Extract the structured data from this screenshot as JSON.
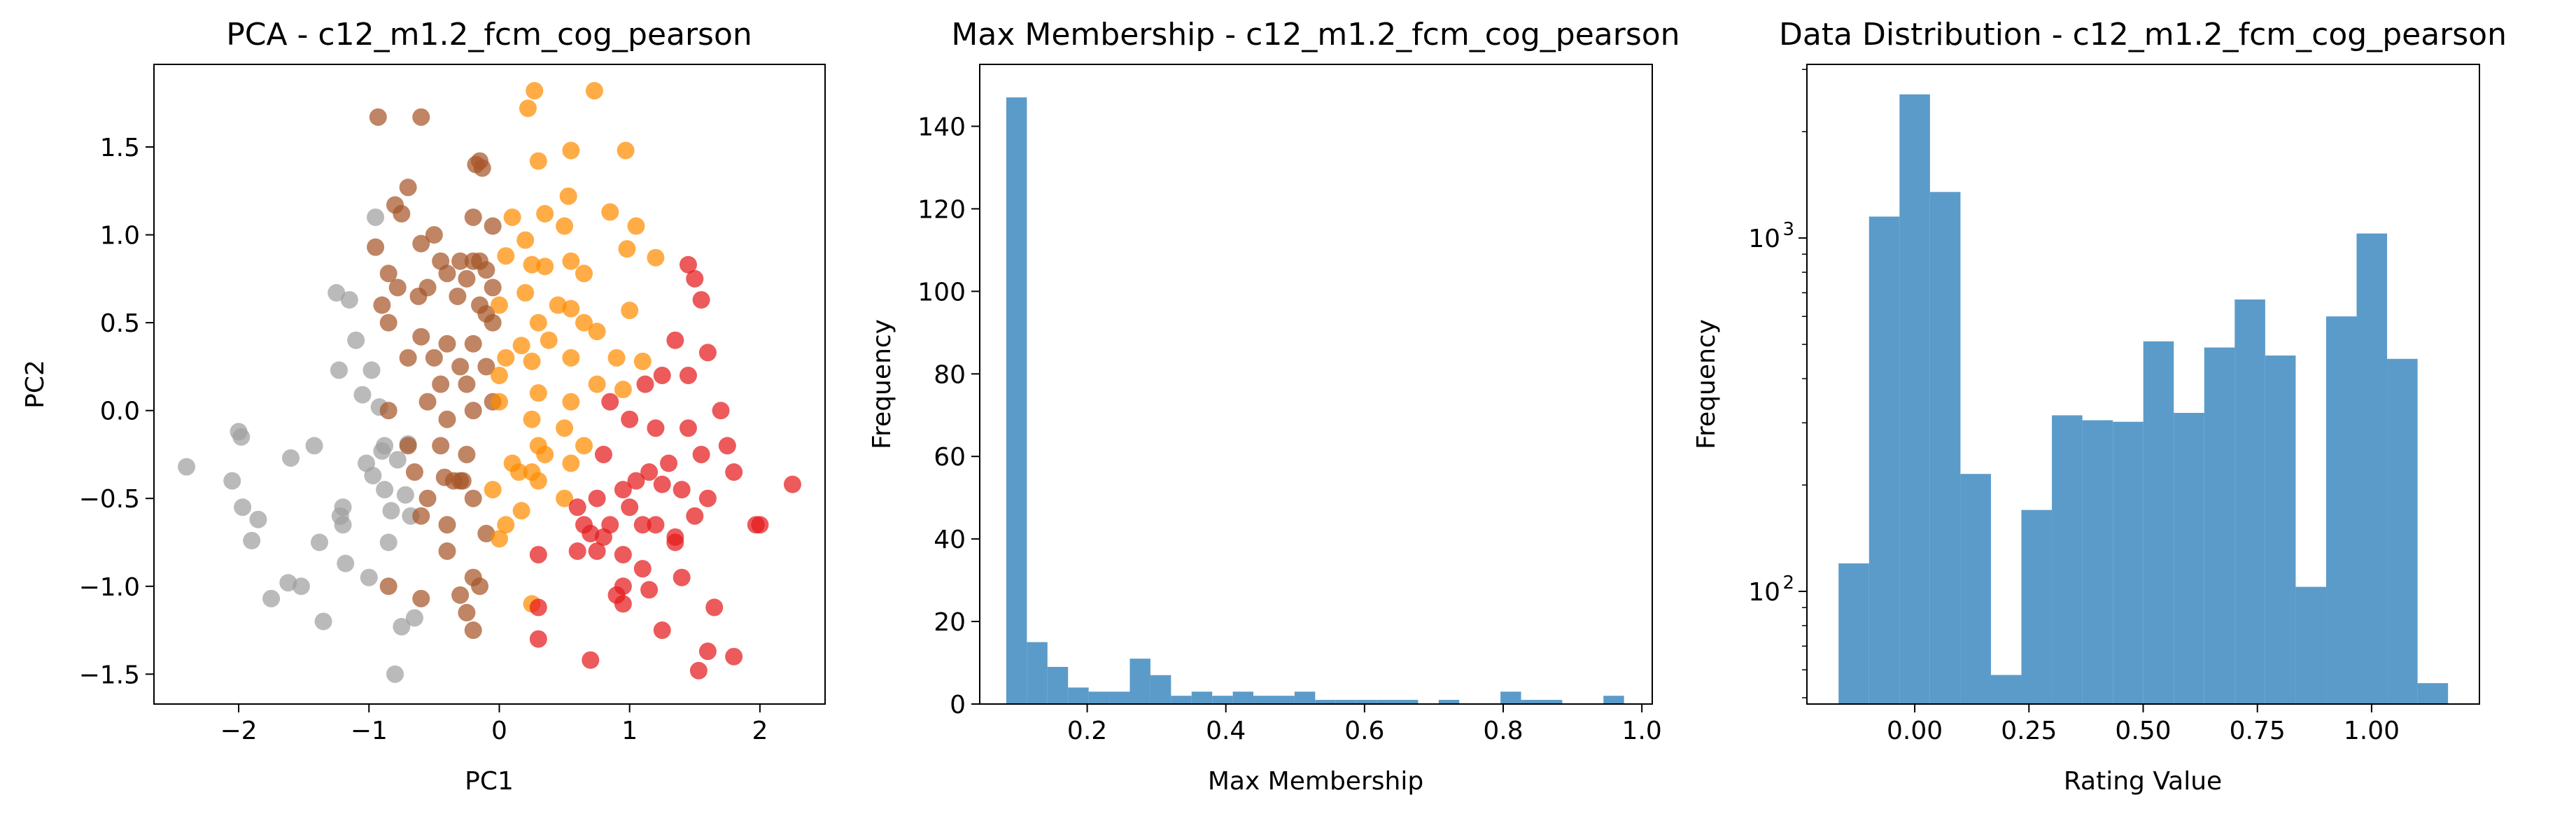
{
  "colors": {
    "cluster_gray": "#a0a0a0",
    "cluster_brown": "#a65628",
    "cluster_orange": "#ff8c00",
    "cluster_red": "#e41a1c",
    "histogram": "#5b9bc9"
  },
  "chart_data": [
    {
      "type": "scatter",
      "title": "PCA - c12_m1.2_fcm_cog_pearson",
      "xlabel": "PC1",
      "ylabel": "PC2",
      "xlim": [
        -2.65,
        2.5
      ],
      "ylim": [
        -1.67,
        1.97
      ],
      "xticks": [
        -2,
        -1,
        0,
        1,
        2
      ],
      "xtick_labels": [
        "−2",
        "−1",
        "0",
        "1",
        "2"
      ],
      "yticks": [
        -1.5,
        -1.0,
        -0.5,
        0.0,
        0.5,
        1.0,
        1.5
      ],
      "ytick_labels": [
        "−1.5",
        "−1.0",
        "−0.5",
        "0.0",
        "0.5",
        "1.0",
        "1.5"
      ],
      "grid": false,
      "series": [
        {
          "color_key": "cluster_gray",
          "points": [
            [
              -2.4,
              -0.32
            ],
            [
              -2.05,
              -0.4
            ],
            [
              -2.0,
              -0.12
            ],
            [
              -1.98,
              -0.15
            ],
            [
              -1.97,
              -0.55
            ],
            [
              -1.9,
              -0.74
            ],
            [
              -1.85,
              -0.62
            ],
            [
              -1.75,
              -1.07
            ],
            [
              -1.62,
              -0.98
            ],
            [
              -1.6,
              -0.27
            ],
            [
              -1.52,
              -1.0
            ],
            [
              -1.42,
              -0.2
            ],
            [
              -1.38,
              -0.75
            ],
            [
              -1.35,
              -1.2
            ],
            [
              -1.25,
              0.67
            ],
            [
              -1.23,
              0.23
            ],
            [
              -1.2,
              -0.65
            ],
            [
              -1.18,
              -0.87
            ],
            [
              -1.15,
              0.63
            ],
            [
              -1.1,
              0.4
            ],
            [
              -1.05,
              0.09
            ],
            [
              -1.02,
              -0.3
            ],
            [
              -1.0,
              -0.95
            ],
            [
              -0.98,
              0.23
            ],
            [
              -0.97,
              -0.37
            ],
            [
              -0.95,
              1.1
            ],
            [
              -0.92,
              0.02
            ],
            [
              -0.9,
              -0.23
            ],
            [
              -0.88,
              -0.45
            ],
            [
              -0.85,
              -0.75
            ],
            [
              -0.83,
              -0.57
            ],
            [
              -0.8,
              -1.5
            ],
            [
              -0.78,
              -0.28
            ],
            [
              -0.75,
              -1.23
            ],
            [
              -0.72,
              -0.48
            ],
            [
              -0.7,
              -0.19
            ],
            [
              -0.68,
              -0.6
            ],
            [
              -0.65,
              -1.18
            ],
            [
              -1.2,
              -0.55
            ],
            [
              -1.22,
              -0.6
            ],
            [
              -0.88,
              -0.2
            ]
          ]
        },
        {
          "color_key": "cluster_brown",
          "points": [
            [
              -0.93,
              1.67
            ],
            [
              -0.6,
              1.67
            ],
            [
              -0.15,
              1.42
            ],
            [
              -0.13,
              1.38
            ],
            [
              -0.18,
              1.4
            ],
            [
              -0.7,
              1.27
            ],
            [
              -0.05,
              1.05
            ],
            [
              -0.2,
              1.1
            ],
            [
              -0.8,
              1.17
            ],
            [
              -0.75,
              1.12
            ],
            [
              -0.95,
              0.93
            ],
            [
              -0.5,
              1.0
            ],
            [
              -0.85,
              0.78
            ],
            [
              -0.6,
              0.95
            ],
            [
              -0.45,
              0.85
            ],
            [
              -0.3,
              0.85
            ],
            [
              -0.2,
              0.85
            ],
            [
              -0.15,
              0.85
            ],
            [
              -0.1,
              0.8
            ],
            [
              -0.78,
              0.7
            ],
            [
              -0.4,
              0.78
            ],
            [
              -0.25,
              0.75
            ],
            [
              -0.55,
              0.7
            ],
            [
              -0.05,
              0.7
            ],
            [
              -0.9,
              0.6
            ],
            [
              -0.62,
              0.65
            ],
            [
              -0.32,
              0.65
            ],
            [
              -0.15,
              0.6
            ],
            [
              -0.1,
              0.55
            ],
            [
              -0.85,
              0.5
            ],
            [
              -0.6,
              0.42
            ],
            [
              -0.4,
              0.38
            ],
            [
              -0.2,
              0.38
            ],
            [
              -0.05,
              0.5
            ],
            [
              -0.7,
              0.3
            ],
            [
              -0.5,
              0.3
            ],
            [
              -0.3,
              0.25
            ],
            [
              -0.1,
              0.25
            ],
            [
              -0.45,
              0.15
            ],
            [
              -0.25,
              0.15
            ],
            [
              -0.85,
              0.0
            ],
            [
              -0.55,
              0.05
            ],
            [
              -0.4,
              -0.05
            ],
            [
              -0.2,
              0.0
            ],
            [
              -0.05,
              0.05
            ],
            [
              -0.7,
              -0.2
            ],
            [
              -0.45,
              -0.2
            ],
            [
              -0.25,
              -0.25
            ],
            [
              -0.65,
              -0.35
            ],
            [
              -0.42,
              -0.38
            ],
            [
              -0.35,
              -0.4
            ],
            [
              -0.3,
              -0.4
            ],
            [
              -0.55,
              -0.5
            ],
            [
              -0.2,
              -0.5
            ],
            [
              -0.6,
              -0.6
            ],
            [
              -0.4,
              -0.65
            ],
            [
              -0.1,
              -0.7
            ],
            [
              -0.4,
              -0.8
            ],
            [
              -0.85,
              -1.0
            ],
            [
              -0.2,
              -0.95
            ],
            [
              -0.15,
              -1.0
            ],
            [
              -0.6,
              -1.07
            ],
            [
              -0.3,
              -1.05
            ],
            [
              -0.25,
              -1.15
            ],
            [
              -0.2,
              -1.25
            ],
            [
              -0.28,
              -0.4
            ]
          ]
        },
        {
          "color_key": "cluster_orange",
          "points": [
            [
              0.27,
              1.82
            ],
            [
              0.73,
              1.82
            ],
            [
              0.22,
              1.72
            ],
            [
              0.55,
              1.48
            ],
            [
              0.3,
              1.42
            ],
            [
              0.97,
              1.48
            ],
            [
              0.53,
              1.22
            ],
            [
              0.1,
              1.1
            ],
            [
              0.35,
              1.12
            ],
            [
              0.5,
              1.05
            ],
            [
              0.85,
              1.13
            ],
            [
              1.05,
              1.05
            ],
            [
              0.2,
              0.97
            ],
            [
              0.25,
              0.83
            ],
            [
              0.35,
              0.82
            ],
            [
              0.55,
              0.85
            ],
            [
              0.98,
              0.92
            ],
            [
              0.05,
              0.88
            ],
            [
              0.65,
              0.78
            ],
            [
              1.2,
              0.87
            ],
            [
              0.2,
              0.67
            ],
            [
              0.45,
              0.6
            ],
            [
              0.55,
              0.58
            ],
            [
              0.0,
              0.6
            ],
            [
              0.3,
              0.5
            ],
            [
              0.65,
              0.5
            ],
            [
              1.0,
              0.57
            ],
            [
              0.17,
              0.37
            ],
            [
              0.38,
              0.4
            ],
            [
              0.75,
              0.45
            ],
            [
              0.05,
              0.3
            ],
            [
              0.25,
              0.28
            ],
            [
              0.55,
              0.3
            ],
            [
              0.9,
              0.3
            ],
            [
              1.1,
              0.28
            ],
            [
              0.0,
              0.2
            ],
            [
              0.3,
              0.1
            ],
            [
              0.55,
              0.05
            ],
            [
              0.75,
              0.15
            ],
            [
              0.95,
              0.12
            ],
            [
              0.0,
              0.05
            ],
            [
              0.25,
              -0.05
            ],
            [
              0.5,
              -0.1
            ],
            [
              0.3,
              -0.2
            ],
            [
              0.65,
              -0.2
            ],
            [
              0.1,
              -0.3
            ],
            [
              0.15,
              -0.35
            ],
            [
              0.35,
              -0.25
            ],
            [
              0.3,
              -0.4
            ],
            [
              0.55,
              -0.3
            ],
            [
              0.5,
              -0.5
            ],
            [
              -0.05,
              -0.45
            ],
            [
              0.17,
              -0.57
            ],
            [
              0.0,
              -0.73
            ],
            [
              0.25,
              -1.1
            ],
            [
              0.05,
              -0.65
            ],
            [
              0.25,
              -0.35
            ]
          ]
        },
        {
          "color_key": "cluster_red",
          "points": [
            [
              1.45,
              0.83
            ],
            [
              1.5,
              0.75
            ],
            [
              1.55,
              0.63
            ],
            [
              1.6,
              0.33
            ],
            [
              1.35,
              0.4
            ],
            [
              1.45,
              0.2
            ],
            [
              1.25,
              0.2
            ],
            [
              1.12,
              0.15
            ],
            [
              0.85,
              0.05
            ],
            [
              1.7,
              0.0
            ],
            [
              1.0,
              -0.05
            ],
            [
              1.2,
              -0.1
            ],
            [
              1.75,
              -0.2
            ],
            [
              1.45,
              -0.1
            ],
            [
              0.8,
              -0.25
            ],
            [
              1.3,
              -0.3
            ],
            [
              1.55,
              -0.25
            ],
            [
              1.15,
              -0.35
            ],
            [
              1.4,
              -0.45
            ],
            [
              1.8,
              -0.35
            ],
            [
              0.95,
              -0.45
            ],
            [
              1.05,
              -0.4
            ],
            [
              1.25,
              -0.42
            ],
            [
              1.6,
              -0.5
            ],
            [
              2.25,
              -0.42
            ],
            [
              0.6,
              -0.55
            ],
            [
              0.75,
              -0.5
            ],
            [
              1.0,
              -0.55
            ],
            [
              1.1,
              -0.65
            ],
            [
              0.65,
              -0.65
            ],
            [
              0.7,
              -0.7
            ],
            [
              0.85,
              -0.65
            ],
            [
              1.2,
              -0.65
            ],
            [
              1.35,
              -0.72
            ],
            [
              1.5,
              -0.6
            ],
            [
              1.97,
              -0.65
            ],
            [
              2.0,
              -0.65
            ],
            [
              0.75,
              -0.8
            ],
            [
              0.95,
              -0.82
            ],
            [
              1.1,
              -0.9
            ],
            [
              1.4,
              -0.95
            ],
            [
              0.3,
              -0.82
            ],
            [
              0.6,
              -0.8
            ],
            [
              0.95,
              -1.0
            ],
            [
              1.15,
              -1.02
            ],
            [
              0.9,
              -1.05
            ],
            [
              0.3,
              -1.12
            ],
            [
              0.95,
              -1.1
            ],
            [
              1.65,
              -1.12
            ],
            [
              0.3,
              -1.3
            ],
            [
              1.25,
              -1.25
            ],
            [
              1.6,
              -1.37
            ],
            [
              0.7,
              -1.42
            ],
            [
              1.53,
              -1.48
            ],
            [
              1.8,
              -1.4
            ],
            [
              1.35,
              -0.75
            ],
            [
              0.8,
              -0.72
            ]
          ]
        }
      ]
    },
    {
      "type": "bar",
      "title": "Max Membership - c12_m1.2_fcm_cog_pearson",
      "xlabel": "Max Membership",
      "ylabel": "Frequency",
      "xlim": [
        0.045,
        1.015
      ],
      "ylim": [
        0,
        155
      ],
      "xticks": [
        0.2,
        0.4,
        0.6,
        0.8,
        1.0
      ],
      "xtick_labels": [
        "0.2",
        "0.4",
        "0.6",
        "0.8",
        "1.0"
      ],
      "yticks": [
        0,
        20,
        40,
        60,
        80,
        100,
        120,
        140
      ],
      "ytick_labels": [
        "0",
        "20",
        "40",
        "60",
        "80",
        "100",
        "120",
        "140"
      ],
      "grid": false,
      "bin_start": 0.0833,
      "bin_width": 0.0297,
      "values": [
        147,
        15,
        9,
        4,
        3,
        3,
        11,
        7,
        2,
        3,
        2,
        3,
        2,
        2,
        3,
        1,
        1,
        1,
        1,
        1,
        0,
        1,
        0,
        0,
        3,
        1,
        1,
        0,
        0,
        2
      ]
    },
    {
      "type": "bar",
      "title": "Data Distribution - c12_m1.2_fcm_cog_pearson",
      "xlabel": "Rating Value",
      "ylabel": "Frequency",
      "yscale": "log",
      "xlim": [
        -0.236,
        1.236
      ],
      "ylim": [
        48,
        3100
      ],
      "xticks": [
        0.0,
        0.25,
        0.5,
        0.75,
        1.0
      ],
      "xtick_labels": [
        "0.00",
        "0.25",
        "0.50",
        "0.75",
        "1.00"
      ],
      "yticks_major": [
        100,
        1000
      ],
      "ytick_labels": [
        "10",
        "10"
      ],
      "ytick_exponents": [
        "2",
        "3"
      ],
      "grid": false,
      "bin_start": -0.1667,
      "bin_width": 0.0667,
      "values": [
        120,
        1150,
        2550,
        1350,
        215,
        58,
        170,
        315,
        305,
        302,
        510,
        320,
        490,
        670,
        465,
        103,
        600,
        1030,
        455,
        55
      ]
    }
  ]
}
